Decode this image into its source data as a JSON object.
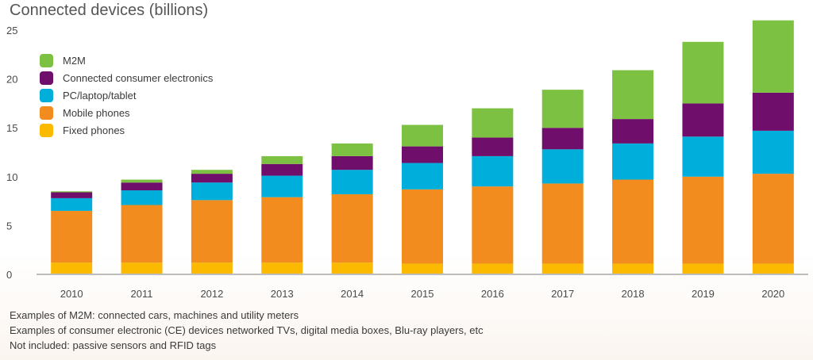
{
  "chart_data": {
    "type": "bar",
    "stacked": true,
    "title": "Connected devices (billions)",
    "xlabel": "",
    "ylabel": "",
    "ylim": [
      0,
      25
    ],
    "yticks": [
      0,
      5,
      10,
      15,
      20,
      25
    ],
    "grid": false,
    "legend_position": "top-left",
    "categories": [
      "2010",
      "2011",
      "2012",
      "2013",
      "2014",
      "2015",
      "2016",
      "2017",
      "2018",
      "2019",
      "2020"
    ],
    "series": [
      {
        "name": "Fixed phones",
        "color": "#fbb900",
        "values": [
          1.2,
          1.2,
          1.2,
          1.2,
          1.2,
          1.1,
          1.1,
          1.1,
          1.1,
          1.1,
          1.1
        ]
      },
      {
        "name": "Mobile phones",
        "color": "#f28c1e",
        "values": [
          5.3,
          5.9,
          6.4,
          6.7,
          7.0,
          7.6,
          7.9,
          8.2,
          8.6,
          8.9,
          9.2
        ]
      },
      {
        "name": "PC/laptop/tablet",
        "color": "#00aedb",
        "values": [
          1.3,
          1.5,
          1.8,
          2.2,
          2.5,
          2.7,
          3.1,
          3.5,
          3.7,
          4.1,
          4.4
        ]
      },
      {
        "name": "Connected consumer electronics",
        "color": "#6f0f6b",
        "values": [
          0.6,
          0.8,
          0.9,
          1.2,
          1.4,
          1.7,
          1.9,
          2.2,
          2.5,
          3.4,
          3.9
        ]
      },
      {
        "name": "M2M",
        "color": "#7dc142",
        "values": [
          0.1,
          0.3,
          0.4,
          0.8,
          1.3,
          2.2,
          3.0,
          3.9,
          5.0,
          6.3,
          7.4
        ]
      }
    ],
    "legend_order": [
      "M2M",
      "Connected consumer electronics",
      "PC/laptop/tablet",
      "Mobile phones",
      "Fixed phones"
    ]
  },
  "footnotes": [
    "Examples of M2M: connected cars, machines and utility meters",
    "Examples of consumer electronic (CE) devices networked TVs, digital media boxes, Blu-ray players, etc",
    "Not included: passive sensors and RFID tags"
  ]
}
